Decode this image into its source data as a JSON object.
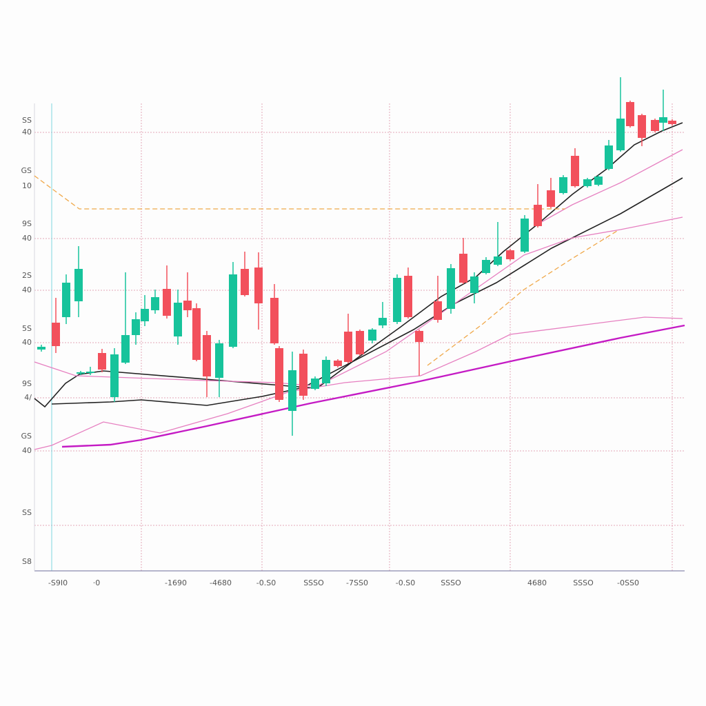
{
  "chart_data": {
    "type": "candlestick",
    "up_color": "#17c39b",
    "down_color": "#f2505c",
    "grid_color": "#e4a6b8",
    "xlim": [
      50,
      993
    ],
    "ylim": [
      0,
      678
    ],
    "x_gridlines": [
      75,
      205,
      380,
      565,
      740,
      975
    ],
    "y_gridlines": [
      636,
      482,
      407,
      331,
      251,
      174,
      66
    ],
    "y_labels": [
      {
        "value": 653,
        "label": "SS"
      },
      {
        "value": 636,
        "label": "40"
      },
      {
        "value": 580,
        "label": "GS"
      },
      {
        "value": 558,
        "label": "10"
      },
      {
        "value": 503,
        "label": "9S"
      },
      {
        "value": 482,
        "label": "40"
      },
      {
        "value": 428,
        "label": "2S"
      },
      {
        "value": 407,
        "label": "40"
      },
      {
        "value": 351,
        "label": "5S"
      },
      {
        "value": 331,
        "label": "40"
      },
      {
        "value": 271,
        "label": "9S"
      },
      {
        "value": 251,
        "label": "4/"
      },
      {
        "value": 195,
        "label": "GS"
      },
      {
        "value": 174,
        "label": "40"
      },
      {
        "value": 84,
        "label": "SS"
      },
      {
        "value": 13,
        "label": "S8"
      }
    ],
    "xticks": [
      {
        "value": 84,
        "label": "-S9I0"
      },
      {
        "value": 140,
        "label": "·0"
      },
      {
        "value": 255,
        "label": "-1690"
      },
      {
        "value": 320,
        "label": "-4680"
      },
      {
        "value": 386,
        "label": "-0.S0"
      },
      {
        "value": 455,
        "label": "SSSO"
      },
      {
        "value": 518,
        "label": "-7SS0"
      },
      {
        "value": 588,
        "label": "-0.S0"
      },
      {
        "value": 654,
        "label": "SSSO"
      },
      {
        "value": 779,
        "label": "4680"
      },
      {
        "value": 846,
        "label": "SSSO"
      },
      {
        "value": 911,
        "label": "-0SS0"
      }
    ],
    "x": [
      60,
      81,
      96,
      114,
      117,
      131,
      148,
      166,
      182,
      197,
      210,
      225,
      242,
      258,
      272,
      285,
      300,
      318,
      338,
      355,
      375,
      398,
      405,
      424,
      440,
      457,
      473,
      490,
      505,
      522,
      540,
      555,
      576,
      592,
      608,
      635,
      654,
      672,
      688,
      705,
      722,
      740,
      761,
      780,
      799,
      817,
      834,
      852,
      868,
      883,
      900,
      914,
      931,
      950,
      962,
      975
    ],
    "open": [
      321,
      360,
      368,
      391,
      286,
      287,
      316,
      252,
      302,
      342,
      362,
      378,
      409,
      340,
      392,
      381,
      342,
      280,
      325,
      438,
      440,
      396,
      323,
      232,
      315,
      264,
      272,
      305,
      347,
      348,
      334,
      356,
      361,
      428,
      348,
      391,
      380,
      460,
      403,
      432,
      444,
      465,
      463,
      531,
      552,
      548,
      602,
      558,
      560,
      583,
      610,
      680,
      661,
      654,
      650,
      653
    ],
    "high": [
      328,
      396,
      430,
      471,
      290,
      296,
      322,
      323,
      433,
      375,
      400,
      408,
      443,
      408,
      433,
      388,
      348,
      335,
      448,
      463,
      462,
      416,
      326,
      318,
      321,
      282,
      311,
      307,
      373,
      350,
      352,
      390,
      430,
      440,
      350,
      428,
      445,
      483,
      433,
      455,
      506,
      467,
      516,
      561,
      570,
      574,
      613,
      570,
      574,
      625,
      716,
      682,
      663,
      656,
      698,
      655
    ],
    "low": [
      318,
      316,
      358,
      368,
      284,
      284,
      288,
      245,
      300,
      328,
      355,
      373,
      366,
      328,
      368,
      304,
      252,
      252,
      323,
      398,
      350,
      328,
      245,
      196,
      248,
      262,
      268,
      295,
      301,
      312,
      330,
      352,
      358,
      366,
      283,
      360,
      373,
      416,
      388,
      430,
      442,
      450,
      461,
      498,
      526,
      546,
      556,
      556,
      558,
      581,
      608,
      643,
      616,
      636,
      638,
      646
    ],
    "close": [
      325,
      326,
      418,
      438,
      288,
      289,
      292,
      314,
      342,
      365,
      380,
      397,
      370,
      389,
      378,
      306,
      282,
      330,
      430,
      400,
      388,
      330,
      248,
      291,
      254,
      279,
      306,
      297,
      303,
      314,
      350,
      367,
      425,
      368,
      332,
      364,
      439,
      418,
      427,
      451,
      456,
      452,
      511,
      500,
      528,
      571,
      558,
      568,
      572,
      617,
      656,
      645,
      628,
      638,
      658,
      648
    ],
    "lines": [
      {
        "color": "#222222",
        "width": 1.6,
        "x": [
          50,
          65,
          95,
          115,
          150,
          420,
          460,
          520,
          580,
          640,
          690,
          730,
          780,
          830,
          880,
          920,
          960,
          990
        ],
        "values": [
          250,
          238,
          272,
          285,
          290,
          268,
          265,
          310,
          353,
          398,
          426,
          463,
          503,
          546,
          583,
          618,
          638,
          650
        ]
      },
      {
        "color": "#222222",
        "width": 1.6,
        "x": [
          75,
          160,
          205,
          300,
          380,
          440,
          520,
          600,
          660,
          720,
          800,
          900,
          990
        ],
        "values": [
          242,
          245,
          248,
          240,
          253,
          266,
          308,
          350,
          388,
          418,
          468,
          518,
          570
        ]
      },
      {
        "color": "#e67fc0",
        "width": 1.3,
        "x": [
          50,
          110,
          300,
          400,
          460,
          560,
          660,
          760,
          830,
          900,
          990
        ],
        "values": [
          303,
          283,
          276,
          273,
          268,
          318,
          388,
          458,
          483,
          495,
          513
        ]
      },
      {
        "color": "#e67fc0",
        "width": 1.3,
        "x": [
          50,
          75,
          150,
          232,
          330,
          420,
          500,
          610,
          690,
          740,
          935,
          990
        ],
        "values": [
          176,
          182,
          216,
          200,
          228,
          260,
          273,
          283,
          318,
          343,
          368,
          366
        ]
      },
      {
        "color": "#e67fc0",
        "width": 1.3,
        "x": [
          780,
          830,
          900,
          990
        ],
        "values": [
          503,
          531,
          563,
          611
        ]
      },
      {
        "color": "#c41ac4",
        "width": 2.4,
        "x": [
          90,
          160,
          205,
          300,
          450,
          600,
          750,
          900,
          993
        ],
        "values": [
          180,
          183,
          190,
          210,
          243,
          273,
          306,
          338,
          356
        ]
      },
      {
        "color": "#f0a84a",
        "width": 1.3,
        "dashed": true,
        "x": [
          50,
          115,
          820
        ],
        "values": [
          573,
          525,
          525
        ]
      },
      {
        "color": "#f0a84a",
        "width": 1.3,
        "dashed": true,
        "x": [
          620,
          700,
          760,
          830,
          895
        ],
        "values": [
          298,
          358,
          408,
          453,
          493
        ]
      }
    ]
  }
}
